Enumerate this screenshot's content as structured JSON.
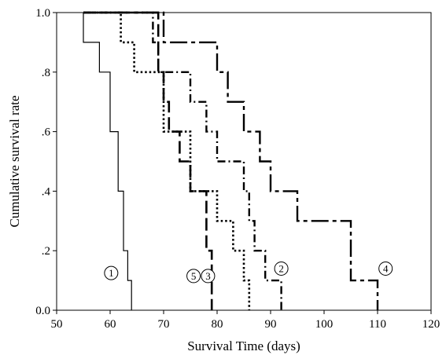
{
  "chart_data": {
    "type": "line",
    "step": true,
    "xlabel": "Survival Time (days)",
    "ylabel": "Cumulative survival rate",
    "xlim": [
      50,
      120
    ],
    "ylim": [
      0,
      1
    ],
    "xticks": [
      50,
      60,
      70,
      80,
      90,
      100,
      110,
      120
    ],
    "xtick_labels": [
      "50",
      "60",
      "70",
      "80",
      "90",
      "100",
      "110",
      "120"
    ],
    "yticks": [
      0,
      0.2,
      0.4,
      0.6,
      0.8,
      1.0
    ],
    "ytick_labels": [
      "0.0",
      ".2",
      ".4",
      ".6",
      ".8",
      "1.0"
    ],
    "grid": false,
    "series": [
      {
        "label_marker": "1",
        "line_style": "solid",
        "marker_at": [
          60.2,
          0.125
        ],
        "points": [
          [
            55,
            1.0
          ],
          [
            55,
            0.9
          ],
          [
            58,
            0.9
          ],
          [
            58,
            0.8
          ],
          [
            60,
            0.8
          ],
          [
            60,
            0.6
          ],
          [
            61.5,
            0.6
          ],
          [
            61.5,
            0.4
          ],
          [
            62.5,
            0.4
          ],
          [
            62.5,
            0.2
          ],
          [
            63.3,
            0.2
          ],
          [
            63.3,
            0.1
          ],
          [
            64,
            0.1
          ],
          [
            64,
            0.0
          ]
        ]
      },
      {
        "label_marker": "5",
        "line_style": "dotted",
        "marker_at": [
          75.6,
          0.115
        ],
        "points": [
          [
            55,
            1.0
          ],
          [
            62,
            1.0
          ],
          [
            62,
            0.9
          ],
          [
            64.5,
            0.9
          ],
          [
            64.5,
            0.8
          ],
          [
            70,
            0.8
          ],
          [
            70,
            0.6
          ],
          [
            75,
            0.6
          ],
          [
            75,
            0.4
          ],
          [
            80,
            0.4
          ],
          [
            80,
            0.3
          ],
          [
            83,
            0.3
          ],
          [
            83,
            0.2
          ],
          [
            85,
            0.2
          ],
          [
            85,
            0.1
          ],
          [
            86,
            0.1
          ],
          [
            86,
            0.0
          ]
        ]
      },
      {
        "label_marker": "3",
        "line_style": "dash-dot",
        "marker_at": [
          78.3,
          0.115
        ],
        "points": [
          [
            55,
            1.0
          ],
          [
            68,
            1.0
          ],
          [
            68,
            0.9
          ],
          [
            69,
            0.9
          ],
          [
            69,
            0.8
          ],
          [
            75,
            0.8
          ],
          [
            75,
            0.7
          ],
          [
            78,
            0.7
          ],
          [
            78,
            0.6
          ],
          [
            80,
            0.6
          ],
          [
            80,
            0.5
          ],
          [
            85,
            0.5
          ],
          [
            85,
            0.4
          ],
          [
            86,
            0.4
          ],
          [
            86,
            0.3
          ],
          [
            87,
            0.3
          ],
          [
            87,
            0.2
          ],
          [
            89,
            0.2
          ],
          [
            89,
            0.1
          ],
          [
            92,
            0.1
          ],
          [
            92,
            0.0
          ]
        ]
      },
      {
        "label_marker": "2",
        "line_style": "long-dash",
        "marker_at": [
          92,
          0.14
        ],
        "points": [
          [
            55,
            1.0
          ],
          [
            69,
            1.0
          ],
          [
            69,
            0.8
          ],
          [
            70,
            0.8
          ],
          [
            70,
            0.7
          ],
          [
            71,
            0.7
          ],
          [
            71,
            0.6
          ],
          [
            73,
            0.6
          ],
          [
            73,
            0.5
          ],
          [
            75,
            0.5
          ],
          [
            75,
            0.4
          ],
          [
            78,
            0.4
          ],
          [
            78,
            0.2
          ],
          [
            79,
            0.2
          ],
          [
            79,
            0.0
          ]
        ]
      },
      {
        "label_marker": "4",
        "line_style": "dash-long-dash",
        "marker_at": [
          111.5,
          0.14
        ],
        "points": [
          [
            55,
            1.0
          ],
          [
            70,
            1.0
          ],
          [
            70,
            0.9
          ],
          [
            80,
            0.9
          ],
          [
            80,
            0.8
          ],
          [
            82,
            0.8
          ],
          [
            82,
            0.7
          ],
          [
            85,
            0.7
          ],
          [
            85,
            0.6
          ],
          [
            88,
            0.6
          ],
          [
            88,
            0.5
          ],
          [
            90,
            0.5
          ],
          [
            90,
            0.4
          ],
          [
            95,
            0.4
          ],
          [
            95,
            0.3
          ],
          [
            105,
            0.3
          ],
          [
            105,
            0.1
          ],
          [
            110,
            0.1
          ],
          [
            110,
            0.0
          ]
        ]
      }
    ]
  }
}
